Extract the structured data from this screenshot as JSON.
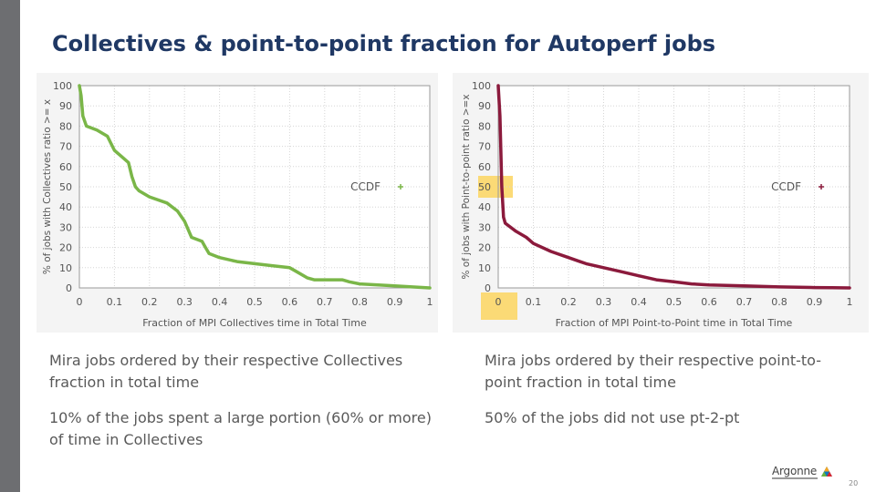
{
  "slide": {
    "title": "Collectives & point-to-point fraction for Autoperf jobs",
    "page_number": "20",
    "logo_text": "Argonne",
    "colors": {
      "title": "#1f3864",
      "left_bar": "#6d6e71",
      "caption": "#595959",
      "series_left": "#7ab648",
      "series_right": "#8b1a3c",
      "highlight": "#fcd55f"
    },
    "captions": {
      "left_1": "Mira jobs ordered by their respective Collectives fraction in total time",
      "left_2": "10% of the jobs spent a large portion (60% or more) of time in Collectives",
      "right_1": "Mira jobs ordered by their respective point-to-point fraction in total time",
      "right_2": "50% of the jobs did not use pt-2-pt"
    }
  },
  "chart_data": [
    {
      "type": "line",
      "xlabel": "Fraction of MPI Collectives time in Total Time",
      "ylabel": "% of jobs with Collectives ratio >= x",
      "legend": "CCDF",
      "legend_position": "right-middle",
      "xlim": [
        0,
        1
      ],
      "ylim": [
        0,
        100
      ],
      "x_ticks": [
        "0",
        "0.1",
        "0.2",
        "0.3",
        "0.4",
        "0.5",
        "0.6",
        "0.7",
        "0.8",
        "0.9",
        "1"
      ],
      "y_ticks": [
        "0",
        "10",
        "20",
        "30",
        "40",
        "50",
        "60",
        "70",
        "80",
        "90",
        "100"
      ],
      "grid": true,
      "color": "#7ab648",
      "series": [
        {
          "x": [
            0,
            0.005,
            0.01,
            0.02,
            0.05,
            0.08,
            0.1,
            0.12,
            0.14,
            0.15,
            0.16,
            0.17,
            0.2,
            0.25,
            0.28,
            0.3,
            0.32,
            0.35,
            0.36,
            0.37,
            0.4,
            0.45,
            0.5,
            0.55,
            0.6,
            0.62,
            0.65,
            0.67,
            0.7,
            0.75,
            0.77,
            0.8,
            0.9,
            1.0
          ],
          "y": [
            100,
            95,
            85,
            80,
            78,
            75,
            68,
            65,
            62,
            55,
            50,
            48,
            45,
            42,
            38,
            33,
            25,
            23,
            20,
            17,
            15,
            13,
            12,
            11,
            10,
            8,
            5,
            4,
            4,
            4,
            3,
            2,
            1,
            0
          ]
        }
      ]
    },
    {
      "type": "line",
      "xlabel": "Fraction of MPI Point-to-Point time in Total Time",
      "ylabel": "% of jobs with Point-to-point ratio >=x",
      "legend": "CCDF",
      "legend_position": "right-middle",
      "xlim": [
        0,
        1
      ],
      "ylim": [
        0,
        100
      ],
      "x_ticks": [
        "0",
        "0.1",
        "0.2",
        "0.3",
        "0.4",
        "0.5",
        "0.6",
        "0.7",
        "0.8",
        "0.9",
        "1"
      ],
      "y_ticks": [
        "0",
        "10",
        "20",
        "30",
        "40",
        "50",
        "60",
        "70",
        "80",
        "90",
        "100"
      ],
      "grid": true,
      "color": "#8b1a3c",
      "highlights": [
        "y=50",
        "x=0"
      ],
      "series": [
        {
          "x": [
            0,
            0.005,
            0.01,
            0.015,
            0.02,
            0.05,
            0.08,
            0.1,
            0.15,
            0.2,
            0.25,
            0.3,
            0.35,
            0.4,
            0.45,
            0.5,
            0.55,
            0.6,
            0.7,
            0.8,
            0.9,
            0.95,
            1.0
          ],
          "y": [
            100,
            85,
            50,
            35,
            32,
            28,
            25,
            22,
            18,
            15,
            12,
            10,
            8,
            6,
            4,
            3,
            2,
            1.5,
            1,
            0.5,
            0.2,
            0.1,
            0
          ]
        }
      ]
    }
  ]
}
